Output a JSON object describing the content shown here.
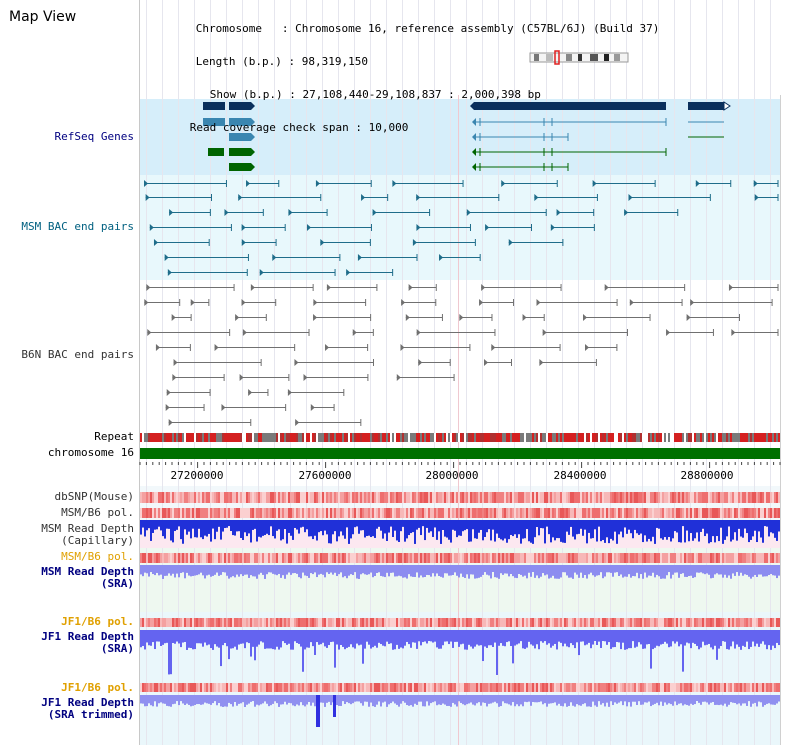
{
  "page": {
    "title": "Map View"
  },
  "info": {
    "chromosome_label": "Chromosome",
    "chromosome_value": "Chromosome 16, reference assembly (C57BL/6J) (Build 37)",
    "length_label": "Length (b.p.)",
    "length_value": "98,319,150",
    "show_label": "Show (b.p.)",
    "show_value": "27,108,440-29,108,837 : 2,000,398 bp",
    "read_coverage_label": "Read coverage check span",
    "read_coverage_value": "10,000"
  },
  "tracks": {
    "refseq_genes": "RefSeq Genes",
    "msm_bac": "MSM BAC end pairs",
    "b6n_bac": "B6N BAC end pairs",
    "repeat": "Repeat",
    "chromosome": "chromosome 16",
    "dbsnp": "dbSNP(Mouse)",
    "msm_b6_pol_1": "MSM/B6 pol.",
    "msm_read_depth_cap_1": "MSM Read Depth",
    "msm_read_depth_cap_2": "(Capillary)",
    "msm_b6_pol_2": "MSM/B6 pol.",
    "msm_read_depth_sra_1": "MSM Read Depth",
    "msm_read_depth_sra_2": "(SRA)",
    "jf1_b6_pol_1": "JF1/B6 pol.",
    "jf1_read_depth_sra_1": "JF1 Read Depth",
    "jf1_read_depth_sra_2": "(SRA)",
    "jf1_b6_pol_2": "JF1/B6 pol.",
    "jf1_read_depth_trim_1": "JF1 Read Depth",
    "jf1_read_depth_trim_2": "(SRA trimmed)"
  },
  "axis": {
    "ticks": [
      "27200000",
      "27600000",
      "28000000",
      "28400000",
      "28800000"
    ]
  },
  "colors": {
    "label_navy": "#000080",
    "label_teal": "#006080",
    "label_dark": "#333333",
    "label_orange": "#e0a000",
    "refseq_bg": "#d6eefa",
    "msm_bg": "#e8f8fc",
    "gene_dark": "#0a2f5c",
    "gene_mid": "#3a86b0",
    "gene_green": "#006400",
    "msm_line": "#1f6d8a",
    "b6n_line": "#707070",
    "chrom_green": "#007000"
  },
  "icons": [
    "chromosome-ideogram-icon"
  ]
}
